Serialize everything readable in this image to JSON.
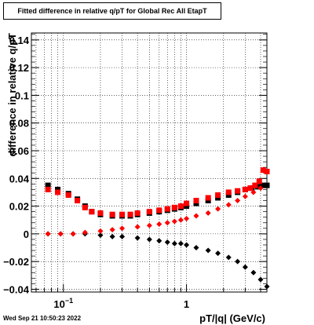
{
  "title": "Fitted difference in relative q/pT for Global Rec All EtapT",
  "timestamp": "Wed Sep 21 10:50:23 2022",
  "chart_data": {
    "type": "scatter",
    "xlabel": "pT/|q| (GeV/c)",
    "ylabel": "difference in relative q/pT",
    "xscale": "log",
    "xlim": [
      0.055,
      4.5
    ],
    "ylim": [
      -0.042,
      0.145
    ],
    "grid": true,
    "xticks": [
      {
        "value": 0.1,
        "label": "10",
        "sup": "−1"
      },
      {
        "value": 1,
        "label": "1",
        "sup": ""
      }
    ],
    "yticks": [
      {
        "value": -0.04,
        "label": "−0.04"
      },
      {
        "value": -0.02,
        "label": "−0.02"
      },
      {
        "value": 0,
        "label": "0"
      },
      {
        "value": 0.02,
        "label": "0.02"
      },
      {
        "value": 0.04,
        "label": "0.04"
      },
      {
        "value": 0.06,
        "label": "0.06"
      },
      {
        "value": 0.08,
        "label": "0.08"
      },
      {
        "value": 0.1,
        "label": "0.1"
      },
      {
        "value": 0.12,
        "label": "0.12"
      },
      {
        "value": 0.14,
        "label": "0.14"
      }
    ],
    "series": [
      {
        "marker": "square",
        "color": "#000000",
        "size": 7,
        "x": [
          0.075,
          0.09,
          0.11,
          0.13,
          0.15,
          0.17,
          0.2,
          0.25,
          0.3,
          0.35,
          0.4,
          0.5,
          0.6,
          0.7,
          0.8,
          0.9,
          1.0,
          1.2,
          1.5,
          1.8,
          2.2,
          2.6,
          3.0,
          3.4,
          3.8,
          4.2,
          4.5
        ],
        "y": [
          0.035,
          0.032,
          0.029,
          0.025,
          0.02,
          0.016,
          0.014,
          0.013,
          0.013,
          0.013,
          0.014,
          0.015,
          0.016,
          0.017,
          0.018,
          0.019,
          0.02,
          0.022,
          0.024,
          0.026,
          0.028,
          0.03,
          0.032,
          0.033,
          0.034,
          0.035,
          0.035
        ]
      },
      {
        "marker": "square",
        "color": "#ff0000",
        "size": 7,
        "x": [
          0.075,
          0.09,
          0.11,
          0.13,
          0.15,
          0.17,
          0.2,
          0.25,
          0.3,
          0.35,
          0.4,
          0.5,
          0.6,
          0.7,
          0.8,
          0.9,
          1.0,
          1.2,
          1.5,
          1.8,
          2.2,
          2.6,
          3.0,
          3.3,
          3.6,
          3.9,
          4.2,
          4.5
        ],
        "y": [
          0.032,
          0.03,
          0.028,
          0.024,
          0.019,
          0.016,
          0.015,
          0.014,
          0.014,
          0.014,
          0.015,
          0.016,
          0.017,
          0.018,
          0.019,
          0.02,
          0.022,
          0.024,
          0.026,
          0.028,
          0.03,
          0.031,
          0.032,
          0.033,
          0.035,
          0.038,
          0.046,
          0.045
        ]
      },
      {
        "marker": "diamond",
        "color": "#000000",
        "size": 7,
        "x": [
          0.075,
          0.095,
          0.12,
          0.15,
          0.2,
          0.25,
          0.3,
          0.4,
          0.5,
          0.6,
          0.7,
          0.8,
          0.9,
          1.0,
          1.2,
          1.5,
          1.8,
          2.2,
          2.6,
          3.0,
          3.5,
          4.0,
          4.5
        ],
        "y": [
          0.0,
          0.0,
          0.0,
          0.0,
          -0.001,
          -0.002,
          -0.002,
          -0.003,
          -0.004,
          -0.005,
          -0.006,
          -0.007,
          -0.007,
          -0.008,
          -0.01,
          -0.012,
          -0.014,
          -0.017,
          -0.02,
          -0.024,
          -0.028,
          -0.033,
          -0.038
        ]
      },
      {
        "marker": "diamond",
        "color": "#ff0000",
        "size": 7,
        "x": [
          0.075,
          0.095,
          0.12,
          0.15,
          0.2,
          0.25,
          0.3,
          0.4,
          0.5,
          0.6,
          0.7,
          0.8,
          0.9,
          1.0,
          1.2,
          1.5,
          1.8,
          2.2,
          2.6,
          3.0,
          3.5,
          4.0
        ],
        "y": [
          0.0,
          0.0,
          0.0,
          0.001,
          0.002,
          0.003,
          0.004,
          0.005,
          0.006,
          0.007,
          0.008,
          0.009,
          0.01,
          0.011,
          0.013,
          0.015,
          0.018,
          0.021,
          0.024,
          0.027,
          0.03,
          0.033
        ]
      }
    ]
  }
}
